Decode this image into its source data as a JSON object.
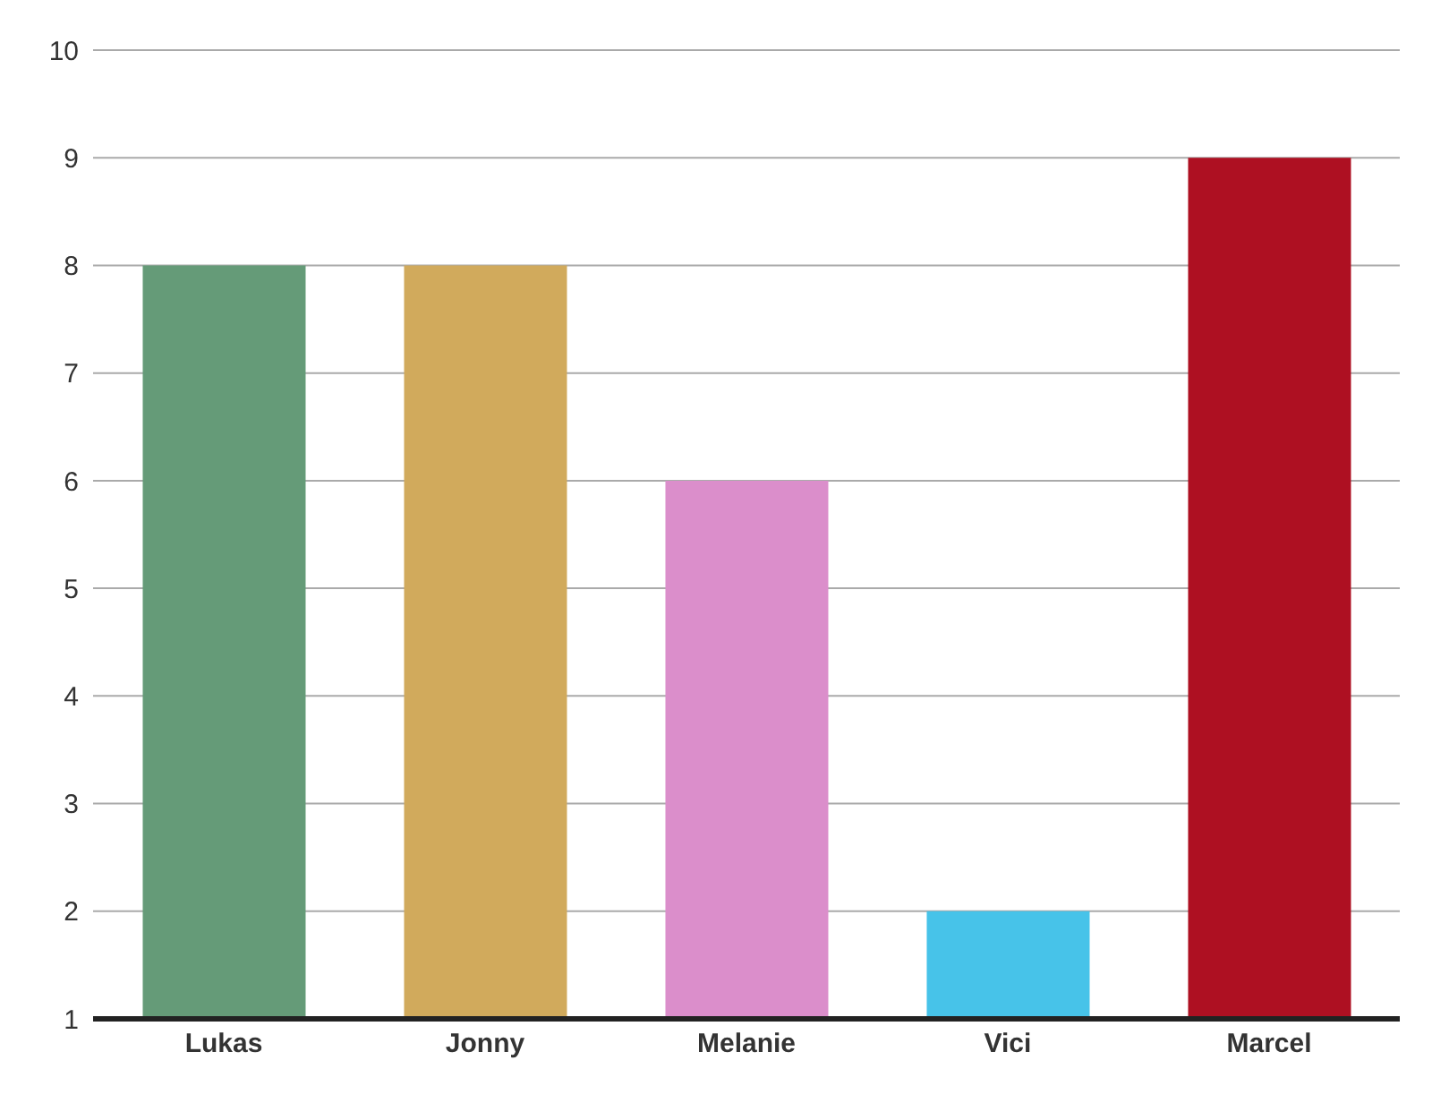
{
  "chart_data": {
    "type": "bar",
    "categories": [
      "Lukas",
      "Jonny",
      "Melanie",
      "Vici",
      "Marcel"
    ],
    "values": [
      8,
      8,
      6,
      2,
      9
    ],
    "colors": [
      "#659b78",
      "#d1aa5c",
      "#db8ecb",
      "#47c3e9",
      "#ae1022"
    ],
    "ylim": [
      1,
      10
    ],
    "yticks": [
      1,
      2,
      3,
      4,
      5,
      6,
      7,
      8,
      9,
      10
    ],
    "grid": "y",
    "legend": false
  }
}
